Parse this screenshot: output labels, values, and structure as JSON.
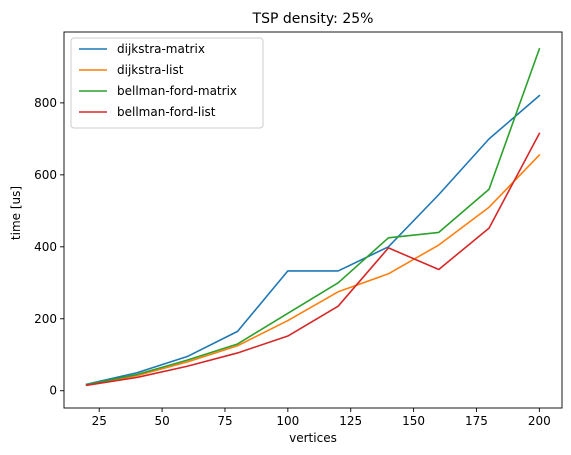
{
  "chart_data": {
    "type": "line",
    "title": "TSP density: 25%",
    "xlabel": "vertices",
    "ylabel": "time [us]",
    "x": [
      20,
      40,
      60,
      80,
      100,
      120,
      140,
      160,
      180,
      200
    ],
    "xlim": [
      11,
      209
    ],
    "ylim": [
      -48,
      997
    ],
    "xticks": [
      25,
      50,
      75,
      100,
      125,
      150,
      175,
      200
    ],
    "yticks": [
      0,
      200,
      400,
      600,
      800
    ],
    "grid": false,
    "legend_position": "upper-left",
    "series": [
      {
        "name": "dijkstra-matrix",
        "color": "#1f77b4",
        "values": [
          18,
          50,
          95,
          165,
          333,
          333,
          400,
          545,
          700,
          820
        ]
      },
      {
        "name": "dijkstra-list",
        "color": "#ff7f0e",
        "values": [
          16,
          42,
          80,
          125,
          195,
          275,
          325,
          405,
          510,
          655
        ]
      },
      {
        "name": "bellman-ford-matrix",
        "color": "#2ca02c",
        "values": [
          17,
          45,
          85,
          130,
          215,
          300,
          425,
          440,
          560,
          950
        ]
      },
      {
        "name": "bellman-ford-list",
        "color": "#d62728",
        "values": [
          15,
          37,
          68,
          105,
          152,
          235,
          397,
          337,
          452,
          715
        ]
      }
    ]
  }
}
